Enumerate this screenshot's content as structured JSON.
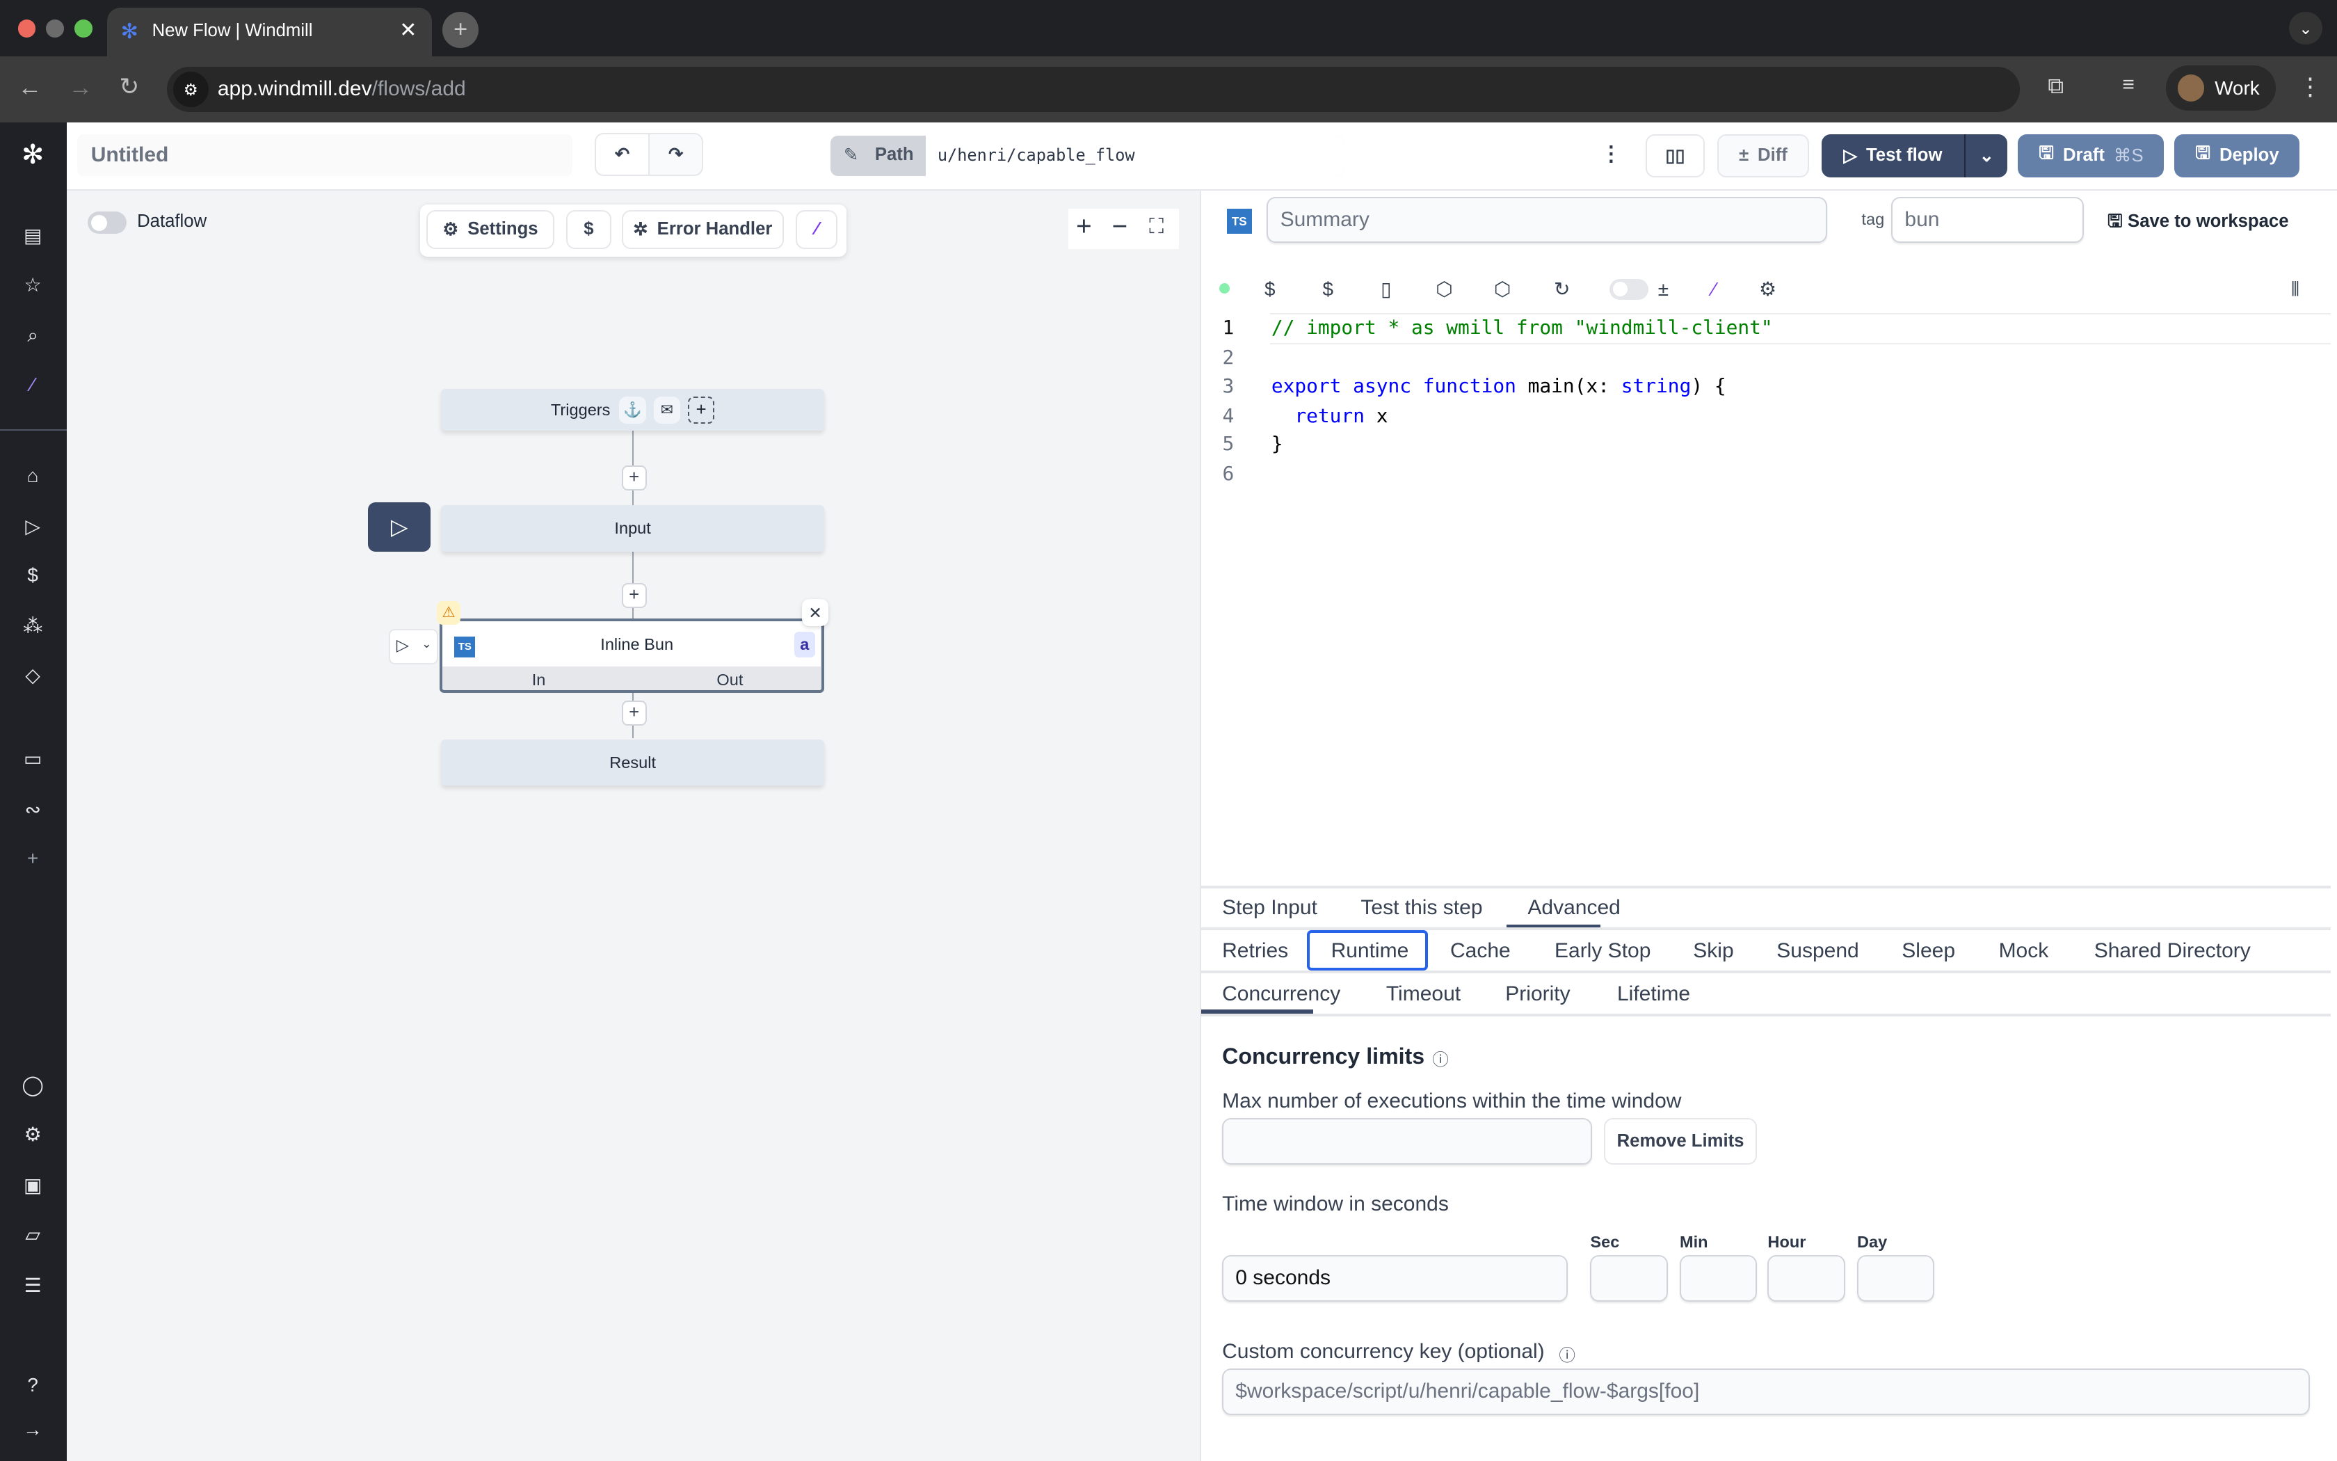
{
  "browser": {
    "tab_title": "New Flow | Windmill",
    "url_host": "app.windmill.dev",
    "url_path": "/flows/add",
    "profile": "Work"
  },
  "header": {
    "title": "Untitled",
    "path_label": "Path",
    "path_value": "u/henri/capable_flow",
    "diff": "Diff",
    "test_flow": "Test flow",
    "draft": "Draft",
    "draft_shortcut": "⌘S",
    "deploy": "Deploy"
  },
  "canvas": {
    "dataflow": "Dataflow",
    "settings": "Settings",
    "error_handler": "Error Handler",
    "nodes": {
      "triggers": "Triggers",
      "input": "Input",
      "step": "Inline Bun",
      "step_id": "a",
      "in": "In",
      "out": "Out",
      "result": "Result"
    }
  },
  "editor": {
    "summary_placeholder": "Summary",
    "tag_label": "tag",
    "tag_value": "bun",
    "save_to_workspace": "Save to workspace",
    "lines": [
      "// import * as wmill from \"windmill-client\"",
      "",
      "export async function main(x: string) {",
      "  return x",
      "}",
      ""
    ]
  },
  "tabs": [
    "Step Input",
    "Test this step",
    "Advanced"
  ],
  "subtabs": [
    "Retries",
    "Runtime",
    "Cache",
    "Early Stop",
    "Skip",
    "Suspend",
    "Sleep",
    "Mock",
    "Shared Directory"
  ],
  "runtime_tabs": [
    "Concurrency",
    "Timeout",
    "Priority",
    "Lifetime"
  ],
  "concurrency": {
    "title": "Concurrency limits",
    "max_label": "Max number of executions within the time window",
    "max_value": "",
    "remove": "Remove Limits",
    "window_label": "Time window in seconds",
    "window_value": "0 seconds",
    "units": [
      "Sec",
      "Min",
      "Hour",
      "Day"
    ],
    "key_label": "Custom concurrency key (optional)",
    "key_placeholder": "$workspace/script/u/henri/capable_flow-$args[foo]"
  },
  "colors": {
    "primary": "#3b4a68",
    "draft": "#6580a8",
    "accent_purple": "#7c3aed",
    "selected_tab_border": "#2563eb"
  }
}
